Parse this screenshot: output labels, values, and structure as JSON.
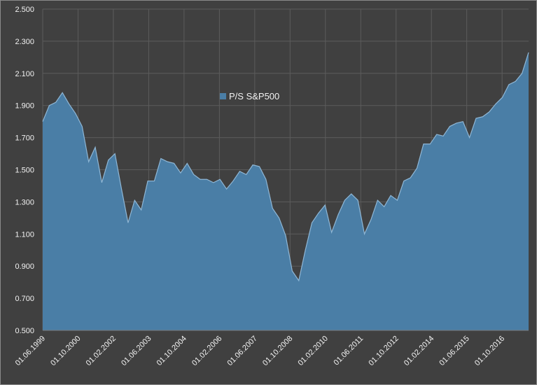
{
  "chart_data": {
    "type": "area",
    "title": "",
    "xlabel": "",
    "ylabel": "",
    "ylim": [
      0.5,
      2.5
    ],
    "yticks": [
      "0.500",
      "0.700",
      "0.900",
      "1.100",
      "1.300",
      "1.500",
      "1.700",
      "1.900",
      "2.100",
      "2.300",
      "2.500"
    ],
    "grid": true,
    "legend_position": "top-center",
    "fill_color": "#4a7ea6",
    "line_color": "#8fb7d6",
    "background": "#404040",
    "x_tick_labels": [
      "01.06.1999",
      "01.10.2000",
      "01.02.2002",
      "01.06.2003",
      "01.10.2004",
      "01.02.2006",
      "01.06.2007",
      "01.10.2008",
      "01.02.2010",
      "01.06.2011",
      "01.10.2012",
      "01.02.2014",
      "01.06.2015",
      "01.10.2016"
    ],
    "series": [
      {
        "name": "P/S S&P500",
        "values": [
          1.8,
          1.9,
          1.92,
          1.98,
          1.91,
          1.85,
          1.77,
          1.55,
          1.64,
          1.42,
          1.56,
          1.6,
          1.38,
          1.17,
          1.31,
          1.25,
          1.43,
          1.43,
          1.57,
          1.55,
          1.54,
          1.48,
          1.54,
          1.47,
          1.44,
          1.44,
          1.42,
          1.44,
          1.38,
          1.43,
          1.49,
          1.47,
          1.53,
          1.52,
          1.44,
          1.26,
          1.2,
          1.09,
          0.87,
          0.81,
          1.0,
          1.17,
          1.23,
          1.28,
          1.11,
          1.22,
          1.31,
          1.35,
          1.31,
          1.1,
          1.19,
          1.31,
          1.27,
          1.34,
          1.31,
          1.43,
          1.45,
          1.51,
          1.66,
          1.66,
          1.72,
          1.71,
          1.77,
          1.79,
          1.8,
          1.7,
          1.82,
          1.83,
          1.86,
          1.91,
          1.95,
          2.03,
          2.05,
          2.1,
          2.23
        ]
      }
    ]
  }
}
